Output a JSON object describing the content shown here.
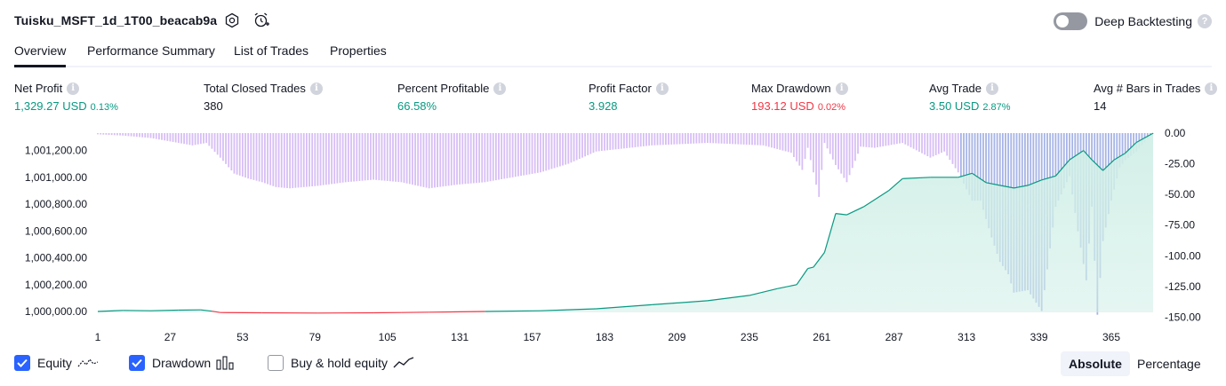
{
  "header": {
    "title": "Tuisku_MSFT_1d_1T00_beacab9a",
    "deep_backtesting_label": "Deep Backtesting",
    "deep_backtesting_on": false
  },
  "tabs": [
    {
      "label": "Overview",
      "active": true
    },
    {
      "label": "Performance Summary",
      "active": false
    },
    {
      "label": "List of Trades",
      "active": false
    },
    {
      "label": "Properties",
      "active": false
    }
  ],
  "metrics": [
    {
      "label": "Net Profit",
      "value": "1,329.27 USD",
      "pct": "0.13%",
      "tone": "green"
    },
    {
      "label": "Total Closed Trades",
      "value": "380",
      "pct": "",
      "tone": "neutral"
    },
    {
      "label": "Percent Profitable",
      "value": "66.58%",
      "pct": "",
      "tone": "green"
    },
    {
      "label": "Profit Factor",
      "value": "3.928",
      "pct": "",
      "tone": "green"
    },
    {
      "label": "Max Drawdown",
      "value": "193.12 USD",
      "pct": "0.02%",
      "tone": "red"
    },
    {
      "label": "Avg Trade",
      "value": "3.50 USD",
      "pct": "2.87%",
      "tone": "green"
    },
    {
      "label": "Avg # Bars in Trades",
      "value": "14",
      "pct": "",
      "tone": "neutral"
    }
  ],
  "colors": {
    "equity_up": "#089981",
    "equity_down": "#f23645",
    "equity_fill": "#d1efe7",
    "drawdown_bar": "#d7bef5",
    "drawdown_overlap": "#a7b4e6",
    "accent": "#2962ff"
  },
  "chart_data": {
    "type": "area",
    "x_ticks": [
      "1",
      "27",
      "53",
      "79",
      "105",
      "131",
      "157",
      "183",
      "209",
      "235",
      "261",
      "287",
      "313",
      "339",
      "365"
    ],
    "x_range": [
      1,
      380
    ],
    "equity_axis_ticks": [
      "1,000,000.00",
      "1,000,200.00",
      "1,000,400.00",
      "1,000,600.00",
      "1,000,800.00",
      "1,001,000.00",
      "1,001,200.00"
    ],
    "equity_ylim": [
      1000000,
      1001329
    ],
    "drawdown_axis_ticks": [
      "0.00",
      "-25.00",
      "-50.00",
      "-75.00",
      "-100.00",
      "-125.00",
      "-150.00"
    ],
    "drawdown_ylim": [
      -150,
      0
    ],
    "series": [
      {
        "name": "Equity",
        "x": [
          1,
          10,
          20,
          30,
          38,
          42,
          45,
          60,
          80,
          100,
          110,
          120,
          140,
          160,
          180,
          200,
          220,
          235,
          245,
          252,
          256,
          258,
          262,
          266,
          270,
          276,
          285,
          290,
          300,
          310,
          315,
          320,
          325,
          330,
          335,
          340,
          345,
          350,
          355,
          358,
          362,
          366,
          370,
          374,
          380
        ],
        "values": [
          1000000,
          1000008,
          1000005,
          1000010,
          1000012,
          1000002,
          999992,
          999990,
          999988,
          999990,
          999992,
          999995,
          1000000,
          1000005,
          1000020,
          1000050,
          1000080,
          1000120,
          1000170,
          1000200,
          1000320,
          1000330,
          1000440,
          1000730,
          1000720,
          1000780,
          1000900,
          1000990,
          1001000,
          1001000,
          1001030,
          1000960,
          1000940,
          1000920,
          1000940,
          1000980,
          1001010,
          1001130,
          1001200,
          1001130,
          1001050,
          1001130,
          1001180,
          1001260,
          1001329
        ]
      },
      {
        "name": "Drawdown",
        "x": [
          1,
          10,
          20,
          30,
          35,
          40,
          45,
          50,
          55,
          60,
          65,
          70,
          75,
          80,
          90,
          100,
          110,
          120,
          130,
          140,
          150,
          160,
          170,
          180,
          200,
          220,
          240,
          250,
          254,
          256,
          260,
          262,
          266,
          270,
          275,
          280,
          290,
          300,
          305,
          310,
          315,
          318,
          322,
          325,
          328,
          330,
          335,
          340,
          345,
          350,
          353,
          356,
          358,
          360,
          362,
          365,
          368,
          370,
          374,
          378,
          380
        ],
        "values": [
          -1,
          -2,
          -4,
          -8,
          -10,
          -8,
          -20,
          -33,
          -37,
          -40,
          -44,
          -45,
          -44,
          -43,
          -40,
          -38,
          -40,
          -45,
          -42,
          -40,
          -36,
          -32,
          -25,
          -15,
          -10,
          -8,
          -10,
          -16,
          -30,
          -12,
          -52,
          -8,
          -26,
          -40,
          -11,
          -12,
          -8,
          -20,
          -15,
          -32,
          -55,
          -55,
          -85,
          -105,
          -115,
          -130,
          -128,
          -145,
          -60,
          -35,
          -80,
          -120,
          -60,
          -148,
          -88,
          -55,
          -28,
          -22,
          -15,
          -5,
          0
        ]
      }
    ]
  },
  "legend": {
    "equity_label": "Equity",
    "equity_checked": true,
    "drawdown_label": "Drawdown",
    "drawdown_checked": true,
    "buyhold_label": "Buy & hold equity",
    "buyhold_checked": false
  },
  "view_toggle": {
    "absolute_label": "Absolute",
    "percentage_label": "Percentage",
    "selected": "Absolute"
  }
}
